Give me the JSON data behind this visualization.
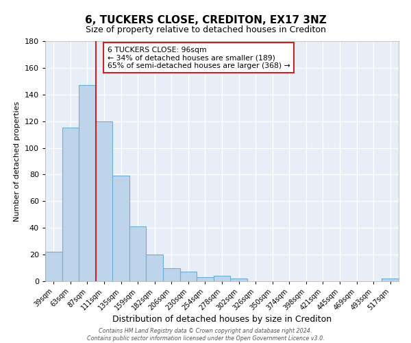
{
  "title": "6, TUCKERS CLOSE, CREDITON, EX17 3NZ",
  "subtitle": "Size of property relative to detached houses in Crediton",
  "xlabel": "Distribution of detached houses by size in Crediton",
  "ylabel": "Number of detached properties",
  "bar_labels": [
    "39sqm",
    "63sqm",
    "87sqm",
    "111sqm",
    "135sqm",
    "159sqm",
    "182sqm",
    "206sqm",
    "230sqm",
    "254sqm",
    "278sqm",
    "302sqm",
    "326sqm",
    "350sqm",
    "374sqm",
    "398sqm",
    "421sqm",
    "445sqm",
    "469sqm",
    "493sqm",
    "517sqm"
  ],
  "bar_values": [
    22,
    115,
    147,
    120,
    79,
    41,
    20,
    10,
    7,
    3,
    4,
    2,
    0,
    0,
    0,
    0,
    0,
    0,
    0,
    0,
    2
  ],
  "bar_color": "#bdd4eb",
  "bar_edge_color": "#6baed6",
  "red_line_x": 2.5,
  "annotation_text_line1": "6 TUCKERS CLOSE: 96sqm",
  "annotation_text_line2": "← 34% of detached houses are smaller (189)",
  "annotation_text_line3": "65% of semi-detached houses are larger (368) →",
  "ylim": [
    0,
    180
  ],
  "yticks": [
    0,
    20,
    40,
    60,
    80,
    100,
    120,
    140,
    160,
    180
  ],
  "footer_line1": "Contains HM Land Registry data © Crown copyright and database right 2024.",
  "footer_line2": "Contains public sector information licensed under the Open Government Licence v3.0.",
  "plot_bg_color": "#e8eef8",
  "fig_bg_color": "#ffffff",
  "grid_color": "#ffffff"
}
